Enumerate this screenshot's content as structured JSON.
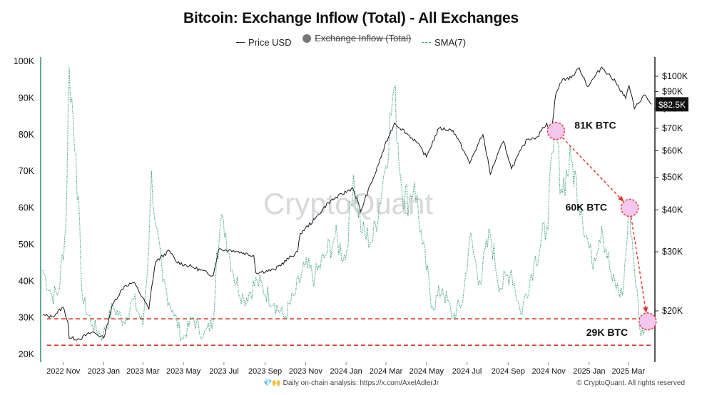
{
  "chart_data": {
    "type": "line",
    "title": "Bitcoin: Exchange Inflow (Total) - All Exchanges",
    "legend": [
      {
        "name": "Price USD",
        "style": "solid",
        "color": "#222222",
        "hidden": false
      },
      {
        "name": "Exchange Inflow (Total)",
        "style": "dot",
        "color": "#777777",
        "hidden": true
      },
      {
        "name": "SMA(7)",
        "style": "dotted",
        "color": "#3aa17a",
        "hidden": false
      }
    ],
    "legend_position": "top-center",
    "grid": false,
    "x_ticks": [
      "2022 Nov",
      "2023 Jan",
      "2023 Mar",
      "2023 May",
      "2023 Jul",
      "2023 Sep",
      "2023 Nov",
      "2024 Jan",
      "2024 Mar",
      "2024 May",
      "2024 Jul",
      "2024 Sep",
      "2024 Nov",
      "2025 Jan",
      "2025 Mar"
    ],
    "x_range": [
      "2022-09-28",
      "2025-04-10"
    ],
    "y_left": {
      "ticks": [
        "20K",
        "30K",
        "40K",
        "50K",
        "60K",
        "70K",
        "80K",
        "90K",
        "100K"
      ],
      "range": [
        20000,
        100000
      ],
      "scale": "linear",
      "unit": "BTC"
    },
    "y_right": {
      "ticks": [
        "$20K",
        "$30K",
        "$40K",
        "$50K",
        "$60K",
        "$70K",
        "$80K",
        "$90K",
        "$100K"
      ],
      "tick_values": [
        20000,
        30000,
        40000,
        50000,
        60000,
        70000,
        80000,
        90000,
        100000
      ],
      "scale": "log",
      "current_label": "$82.5K",
      "current_value": 82500
    },
    "series": [
      {
        "name": "Price USD",
        "axis": "right",
        "points": [
          [
            "2022-10-01",
            19400
          ],
          [
            "2022-10-15",
            19200
          ],
          [
            "2022-11-01",
            20500
          ],
          [
            "2022-11-08",
            18500
          ],
          [
            "2022-11-10",
            16600
          ],
          [
            "2022-11-25",
            16500
          ],
          [
            "2022-12-15",
            17300
          ],
          [
            "2023-01-01",
            16600
          ],
          [
            "2023-01-15",
            21000
          ],
          [
            "2023-02-01",
            23700
          ],
          [
            "2023-02-15",
            24300
          ],
          [
            "2023-03-10",
            20200
          ],
          [
            "2023-03-20",
            28000
          ],
          [
            "2023-04-10",
            30200
          ],
          [
            "2023-04-20",
            28000
          ],
          [
            "2023-05-15",
            27000
          ],
          [
            "2023-06-15",
            25500
          ],
          [
            "2023-06-23",
            30500
          ],
          [
            "2023-07-15",
            30300
          ],
          [
            "2023-08-15",
            29200
          ],
          [
            "2023-08-18",
            26000
          ],
          [
            "2023-09-15",
            26500
          ],
          [
            "2023-10-20",
            30000
          ],
          [
            "2023-10-24",
            34000
          ],
          [
            "2023-11-15",
            37500
          ],
          [
            "2023-12-05",
            42000
          ],
          [
            "2024-01-11",
            46500
          ],
          [
            "2024-01-23",
            39500
          ],
          [
            "2024-02-15",
            52000
          ],
          [
            "2024-03-05",
            66000
          ],
          [
            "2024-03-14",
            72500
          ],
          [
            "2024-04-15",
            64000
          ],
          [
            "2024-05-01",
            57500
          ],
          [
            "2024-05-20",
            70000
          ],
          [
            "2024-06-10",
            69000
          ],
          [
            "2024-07-05",
            55000
          ],
          [
            "2024-07-25",
            67000
          ],
          [
            "2024-08-05",
            51000
          ],
          [
            "2024-08-25",
            64000
          ],
          [
            "2024-09-06",
            53000
          ],
          [
            "2024-09-30",
            65000
          ],
          [
            "2024-10-15",
            66000
          ],
          [
            "2024-10-29",
            72500
          ],
          [
            "2024-11-05",
            68000
          ],
          [
            "2024-11-12",
            89000
          ],
          [
            "2024-11-22",
            98000
          ],
          [
            "2024-12-05",
            99000
          ],
          [
            "2024-12-17",
            106000
          ],
          [
            "2024-12-30",
            93000
          ],
          [
            "2025-01-20",
            106500
          ],
          [
            "2025-02-10",
            96000
          ],
          [
            "2025-02-25",
            86000
          ],
          [
            "2025-03-02",
            94000
          ],
          [
            "2025-03-10",
            80000
          ],
          [
            "2025-03-25",
            88000
          ],
          [
            "2025-04-05",
            82500
          ]
        ]
      },
      {
        "name": "SMA(7)",
        "axis": "left",
        "points": [
          [
            "2022-10-01",
            43000
          ],
          [
            "2022-10-15",
            36000
          ],
          [
            "2022-10-25",
            37000
          ],
          [
            "2022-11-05",
            55000
          ],
          [
            "2022-11-10",
            98500
          ],
          [
            "2022-11-20",
            75000
          ],
          [
            "2022-11-30",
            35000
          ],
          [
            "2022-12-15",
            28000
          ],
          [
            "2022-12-31",
            25000
          ],
          [
            "2023-01-15",
            33000
          ],
          [
            "2023-01-31",
            29000
          ],
          [
            "2023-02-15",
            35000
          ],
          [
            "2023-03-01",
            28000
          ],
          [
            "2023-03-10",
            50000
          ],
          [
            "2023-03-14",
            70000
          ],
          [
            "2023-03-20",
            55000
          ],
          [
            "2023-03-31",
            40000
          ],
          [
            "2023-04-15",
            32000
          ],
          [
            "2023-04-30",
            24000
          ],
          [
            "2023-05-15",
            30000
          ],
          [
            "2023-05-31",
            25000
          ],
          [
            "2023-06-15",
            29000
          ],
          [
            "2023-06-20",
            48000
          ],
          [
            "2023-06-30",
            57000
          ],
          [
            "2023-07-15",
            42000
          ],
          [
            "2023-07-31",
            35000
          ],
          [
            "2023-08-20",
            40000
          ],
          [
            "2023-09-15",
            34000
          ],
          [
            "2023-09-30",
            30000
          ],
          [
            "2023-10-15",
            36000
          ],
          [
            "2023-10-31",
            44000
          ],
          [
            "2023-11-15",
            41000
          ],
          [
            "2023-12-01",
            47000
          ],
          [
            "2023-12-15",
            52000
          ],
          [
            "2023-12-31",
            46000
          ],
          [
            "2024-01-12",
            69000
          ],
          [
            "2024-01-25",
            53000
          ],
          [
            "2024-02-10",
            51000
          ],
          [
            "2024-02-28",
            70000
          ],
          [
            "2024-03-13",
            92500
          ],
          [
            "2024-03-25",
            65000
          ],
          [
            "2024-04-05",
            62000
          ],
          [
            "2024-04-13",
            67000
          ],
          [
            "2024-04-25",
            50000
          ],
          [
            "2024-05-10",
            33000
          ],
          [
            "2024-05-25",
            38000
          ],
          [
            "2024-06-10",
            30000
          ],
          [
            "2024-06-25",
            35000
          ],
          [
            "2024-07-05",
            52000
          ],
          [
            "2024-07-20",
            40000
          ],
          [
            "2024-08-05",
            53000
          ],
          [
            "2024-08-20",
            38000
          ],
          [
            "2024-09-06",
            43000
          ],
          [
            "2024-09-20",
            31000
          ],
          [
            "2024-10-10",
            45000
          ],
          [
            "2024-10-29",
            55000
          ],
          [
            "2024-11-08",
            75000
          ],
          [
            "2024-11-12",
            81000
          ],
          [
            "2024-11-20",
            65000
          ],
          [
            "2024-12-05",
            73000
          ],
          [
            "2024-12-20",
            60000
          ],
          [
            "2025-01-05",
            45000
          ],
          [
            "2025-01-20",
            55000
          ],
          [
            "2025-02-05",
            40000
          ],
          [
            "2025-02-20",
            36000
          ],
          [
            "2025-03-03",
            60000
          ],
          [
            "2025-03-10",
            44000
          ],
          [
            "2025-03-20",
            25000
          ],
          [
            "2025-03-28",
            29000
          ],
          [
            "2025-04-05",
            30000
          ]
        ]
      }
    ],
    "reference_lines": [
      {
        "y": 29700,
        "style": "dashed",
        "color": "#e0352b"
      },
      {
        "y": 22500,
        "style": "dashed",
        "color": "#e0352b"
      }
    ],
    "annotations": [
      {
        "text": "81K BTC",
        "date": "2024-11-12",
        "value": 81000
      },
      {
        "text": "60K BTC",
        "date": "2025-03-03",
        "value": 60000
      },
      {
        "text": "29K BTC",
        "date": "2025-03-30",
        "value": 29000
      }
    ],
    "watermark": "CryptoQuant"
  },
  "footer": {
    "emoji": "💎🙌",
    "text": "Daily on-chain analysis: https://x.com/AxelAdlerJr",
    "copyright": "© CryptoQuant. All rights reserved"
  }
}
